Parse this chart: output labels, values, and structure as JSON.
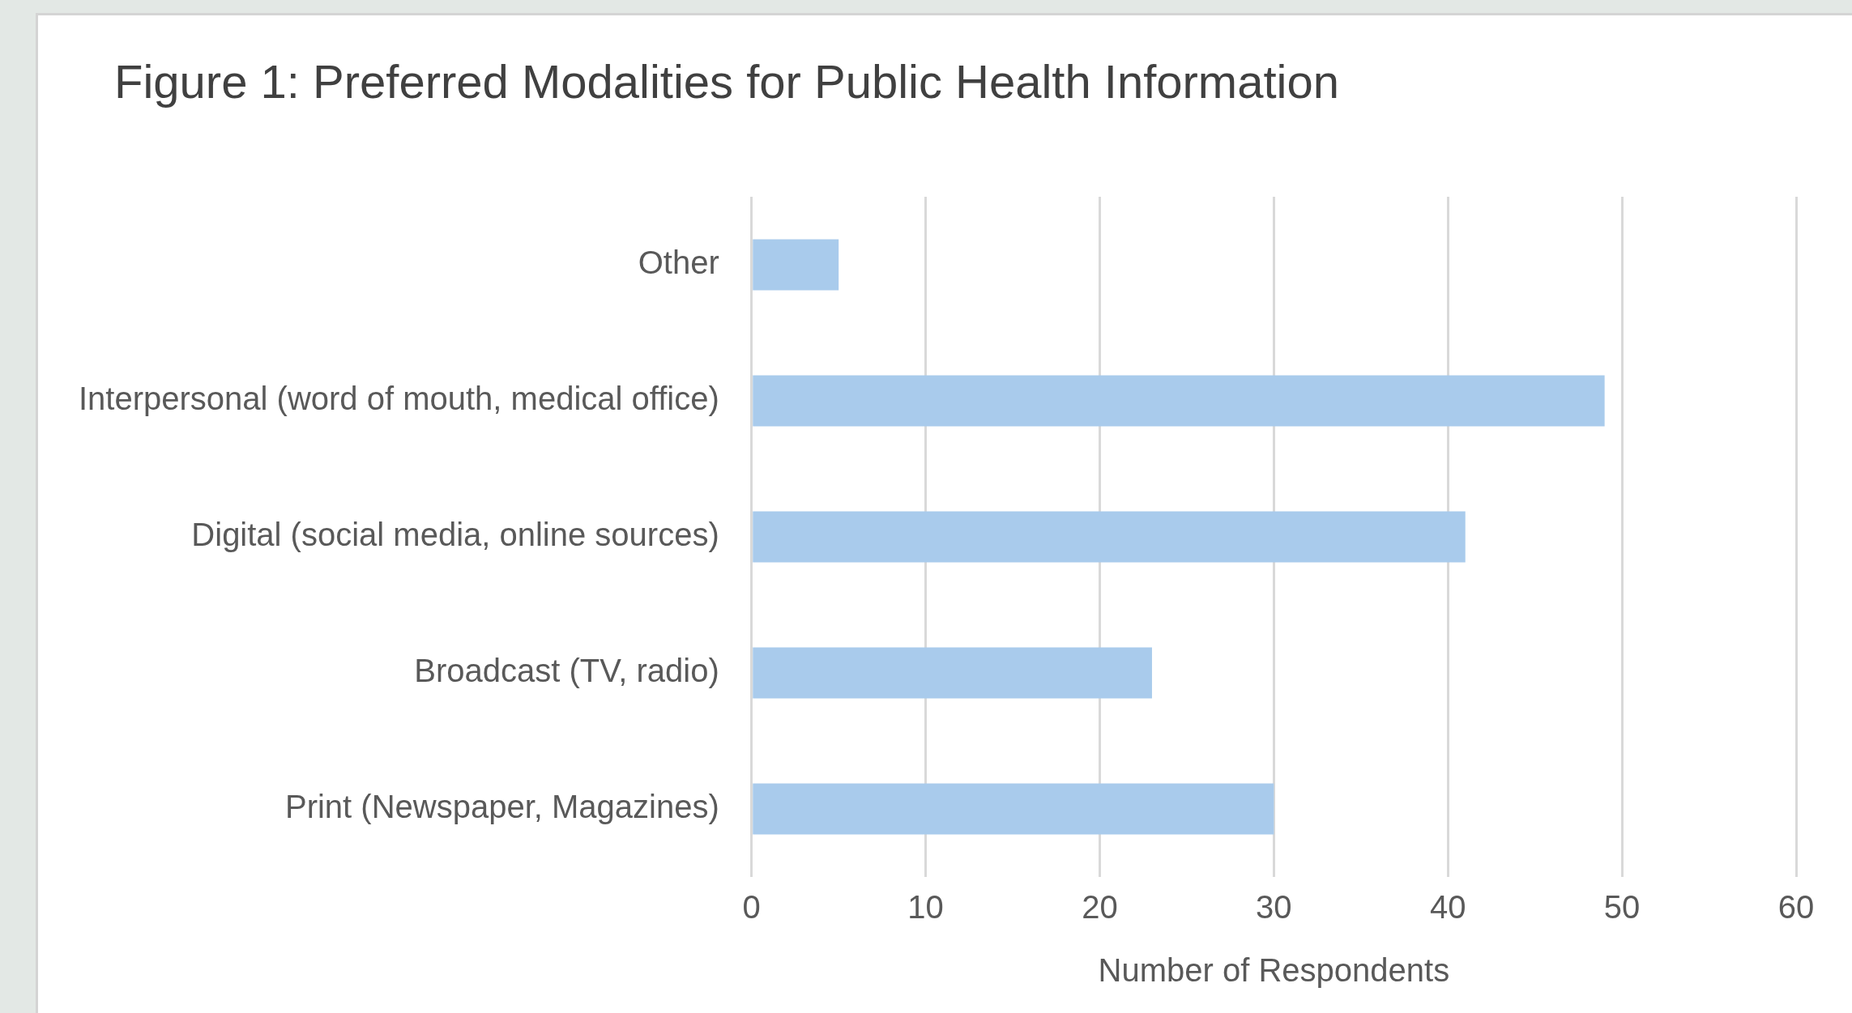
{
  "chart_data": {
    "type": "bar",
    "orientation": "horizontal",
    "title": "Figure 1: Preferred Modalities for Public Health Information",
    "xlabel": "Number of Respondents",
    "categories": [
      "Other",
      "Interpersonal (word of mouth, medical office)",
      "Digital (social media, online sources)",
      "Broadcast (TV, radio)",
      "Print (Newspaper, Magazines)"
    ],
    "values": [
      5,
      49,
      41,
      23,
      30
    ],
    "color": "#a9cbec",
    "xlim": [
      0,
      60
    ],
    "xticks": [
      0,
      10,
      20,
      30,
      40,
      50,
      60
    ],
    "grid": "x",
    "legend": false
  }
}
